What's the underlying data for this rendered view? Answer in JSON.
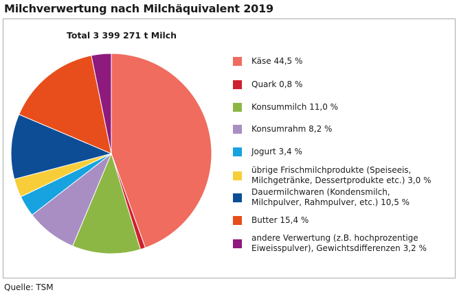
{
  "chart_data": {
    "type": "pie",
    "title": "Milchverwertung nach Milchäquivalent 2019",
    "subtitle": "Total 3 399 271 t Milch",
    "source": "Quelle: TSM",
    "start": "12 o'clock, clockwise",
    "slices": [
      {
        "label": "Käse 44,5 %",
        "value": 44.5,
        "color": "#ef6c5e"
      },
      {
        "label": "Quark 0,8 %",
        "value": 0.8,
        "color": "#cf1f2e"
      },
      {
        "label": "Konsummilch 11,0 %",
        "value": 11.0,
        "color": "#8cb745"
      },
      {
        "label": "Konsumrahm 8,2 %",
        "value": 8.2,
        "color": "#a98ec4"
      },
      {
        "label": "Jogurt 3,4 %",
        "value": 3.4,
        "color": "#16a3e0"
      },
      {
        "label": "übrige Frischmilchprodukte (Speiseeis,\nMilchgetränke, Dessertprodukte etc.) 3,0 %",
        "value": 3.0,
        "color": "#f7ce3a"
      },
      {
        "label": "Dauermilchwaren (Kondensmilch,\nMilchpulver, Rahmpulver, etc.) 10,5 %",
        "value": 10.5,
        "color": "#0c4d96"
      },
      {
        "label": "Butter 15,4 %",
        "value": 15.4,
        "color": "#e84e1b"
      },
      {
        "label": "andere Verwertung (z.B. hochprozentige\nEiweisspulver), Gewichtsdifferenzen 3,2 %",
        "value": 3.2,
        "color": "#8e1a7e"
      }
    ]
  }
}
